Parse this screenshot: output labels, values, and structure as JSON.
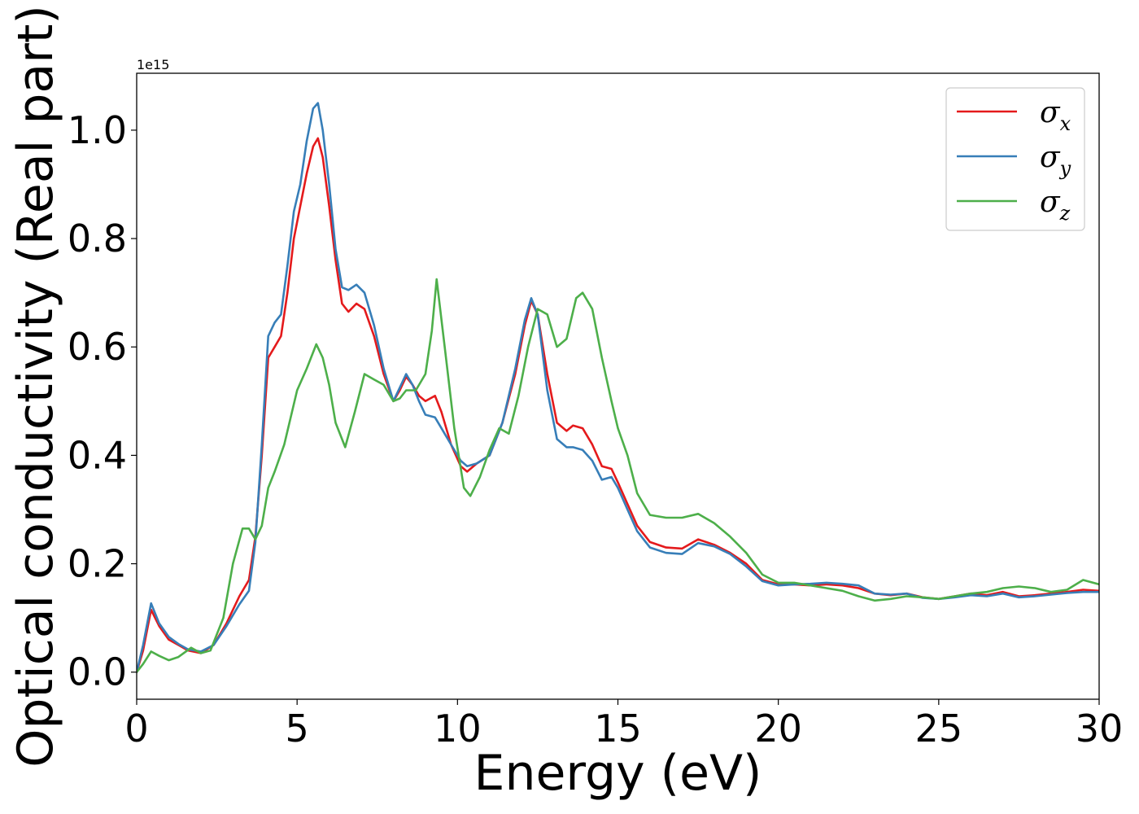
{
  "chart_data": {
    "type": "line",
    "title": "",
    "xlabel": "Energy (eV)",
    "ylabel": "Optical conductivity (Real part)",
    "y_offset_label": "1e15",
    "xlim": [
      0,
      30
    ],
    "ylim": [
      -0.05,
      1.105
    ],
    "xticks": [
      0,
      5,
      10,
      15,
      20,
      25,
      30
    ],
    "yticks": [
      0.0,
      0.2,
      0.4,
      0.6,
      0.8,
      1.0
    ],
    "ytick_labels": [
      "0.0",
      "0.2",
      "0.4",
      "0.6",
      "0.8",
      "1.0"
    ],
    "grid": false,
    "legend_position": "top-right",
    "series": [
      {
        "name": "σx",
        "base": "σ",
        "sub": "x",
        "color": "#e41a1c",
        "x": [
          0,
          0.2,
          0.45,
          0.7,
          1.0,
          1.3,
          1.6,
          2.0,
          2.4,
          2.8,
          3.2,
          3.5,
          3.7,
          3.9,
          4.1,
          4.3,
          4.5,
          4.7,
          4.9,
          5.1,
          5.3,
          5.5,
          5.65,
          5.8,
          6.0,
          6.2,
          6.4,
          6.6,
          6.85,
          7.1,
          7.4,
          7.7,
          8.0,
          8.2,
          8.4,
          8.6,
          8.8,
          9.0,
          9.3,
          9.5,
          9.8,
          10.1,
          10.3,
          10.6,
          11.0,
          11.4,
          11.8,
          12.1,
          12.3,
          12.5,
          12.8,
          13.1,
          13.4,
          13.6,
          13.9,
          14.2,
          14.5,
          14.8,
          15.0,
          15.3,
          15.6,
          16.0,
          16.5,
          17.0,
          17.5,
          18.0,
          18.5,
          19.0,
          19.5,
          20.0,
          20.5,
          21.0,
          21.5,
          22.0,
          22.5,
          23.0,
          23.5,
          24.0,
          24.5,
          25.0,
          25.5,
          26.0,
          26.5,
          27.0,
          27.5,
          28.0,
          28.5,
          29.0,
          29.5,
          30.0
        ],
        "y": [
          0.0,
          0.04,
          0.115,
          0.085,
          0.06,
          0.05,
          0.04,
          0.035,
          0.05,
          0.09,
          0.14,
          0.17,
          0.25,
          0.4,
          0.58,
          0.6,
          0.62,
          0.7,
          0.8,
          0.86,
          0.92,
          0.97,
          0.985,
          0.95,
          0.86,
          0.76,
          0.68,
          0.665,
          0.68,
          0.67,
          0.62,
          0.55,
          0.5,
          0.52,
          0.545,
          0.53,
          0.51,
          0.5,
          0.51,
          0.48,
          0.42,
          0.38,
          0.37,
          0.385,
          0.4,
          0.46,
          0.55,
          0.64,
          0.685,
          0.66,
          0.55,
          0.46,
          0.445,
          0.455,
          0.45,
          0.42,
          0.38,
          0.375,
          0.35,
          0.31,
          0.27,
          0.24,
          0.23,
          0.228,
          0.245,
          0.235,
          0.22,
          0.2,
          0.17,
          0.162,
          0.162,
          0.16,
          0.162,
          0.16,
          0.155,
          0.145,
          0.142,
          0.145,
          0.138,
          0.135,
          0.14,
          0.145,
          0.142,
          0.148,
          0.14,
          0.142,
          0.145,
          0.148,
          0.152,
          0.15
        ]
      },
      {
        "name": "σy",
        "base": "σ",
        "sub": "y",
        "color": "#377eb8",
        "x": [
          0,
          0.2,
          0.45,
          0.7,
          1.0,
          1.3,
          1.6,
          2.0,
          2.4,
          2.8,
          3.2,
          3.5,
          3.7,
          3.9,
          4.1,
          4.3,
          4.5,
          4.7,
          4.9,
          5.1,
          5.3,
          5.5,
          5.65,
          5.8,
          6.0,
          6.2,
          6.4,
          6.6,
          6.85,
          7.1,
          7.4,
          7.7,
          8.0,
          8.2,
          8.4,
          8.6,
          8.8,
          9.0,
          9.3,
          9.5,
          9.8,
          10.1,
          10.3,
          10.6,
          11.0,
          11.4,
          11.8,
          12.1,
          12.3,
          12.5,
          12.8,
          13.1,
          13.4,
          13.6,
          13.9,
          14.2,
          14.5,
          14.8,
          15.0,
          15.3,
          15.6,
          16.0,
          16.5,
          17.0,
          17.5,
          18.0,
          18.5,
          19.0,
          19.5,
          20.0,
          20.5,
          21.0,
          21.5,
          22.0,
          22.5,
          23.0,
          23.5,
          24.0,
          24.5,
          25.0,
          25.5,
          26.0,
          26.5,
          27.0,
          27.5,
          28.0,
          28.5,
          29.0,
          29.5,
          30.0
        ],
        "y": [
          0.0,
          0.05,
          0.127,
          0.09,
          0.065,
          0.052,
          0.042,
          0.038,
          0.05,
          0.085,
          0.125,
          0.15,
          0.24,
          0.42,
          0.62,
          0.645,
          0.66,
          0.75,
          0.85,
          0.9,
          0.98,
          1.04,
          1.05,
          1.0,
          0.9,
          0.78,
          0.71,
          0.705,
          0.715,
          0.7,
          0.64,
          0.56,
          0.5,
          0.525,
          0.55,
          0.53,
          0.5,
          0.475,
          0.47,
          0.45,
          0.42,
          0.39,
          0.38,
          0.385,
          0.4,
          0.46,
          0.56,
          0.65,
          0.69,
          0.66,
          0.52,
          0.43,
          0.415,
          0.415,
          0.41,
          0.39,
          0.355,
          0.36,
          0.34,
          0.3,
          0.26,
          0.23,
          0.22,
          0.218,
          0.238,
          0.232,
          0.218,
          0.195,
          0.168,
          0.16,
          0.162,
          0.163,
          0.165,
          0.163,
          0.16,
          0.145,
          0.143,
          0.145,
          0.137,
          0.135,
          0.138,
          0.142,
          0.14,
          0.145,
          0.138,
          0.14,
          0.143,
          0.146,
          0.148,
          0.148
        ]
      },
      {
        "name": "σz",
        "base": "σ",
        "sub": "z",
        "color": "#4daf4a",
        "x": [
          0,
          0.2,
          0.45,
          0.7,
          1.0,
          1.3,
          1.7,
          2.0,
          2.3,
          2.7,
          3.0,
          3.3,
          3.5,
          3.7,
          3.9,
          4.1,
          4.3,
          4.6,
          5.0,
          5.3,
          5.6,
          5.8,
          6.0,
          6.2,
          6.5,
          6.8,
          7.1,
          7.4,
          7.7,
          8.0,
          8.2,
          8.4,
          8.7,
          9.0,
          9.2,
          9.35,
          9.6,
          9.9,
          10.2,
          10.4,
          10.7,
          11.0,
          11.3,
          11.6,
          11.9,
          12.2,
          12.5,
          12.8,
          13.1,
          13.4,
          13.7,
          13.9,
          14.2,
          14.5,
          14.8,
          15.0,
          15.3,
          15.6,
          16.0,
          16.5,
          17.0,
          17.5,
          18.0,
          18.5,
          19.0,
          19.5,
          20.0,
          20.5,
          21.0,
          21.5,
          22.0,
          22.5,
          23.0,
          23.5,
          24.0,
          24.5,
          25.0,
          25.5,
          26.0,
          26.5,
          27.0,
          27.5,
          28.0,
          28.5,
          29.0,
          29.5,
          30.0
        ],
        "y": [
          0.0,
          0.015,
          0.038,
          0.03,
          0.022,
          0.028,
          0.045,
          0.035,
          0.04,
          0.1,
          0.2,
          0.265,
          0.265,
          0.245,
          0.27,
          0.34,
          0.37,
          0.42,
          0.52,
          0.56,
          0.605,
          0.58,
          0.53,
          0.46,
          0.415,
          0.48,
          0.55,
          0.54,
          0.53,
          0.5,
          0.505,
          0.52,
          0.52,
          0.55,
          0.63,
          0.725,
          0.6,
          0.45,
          0.34,
          0.325,
          0.36,
          0.41,
          0.45,
          0.44,
          0.51,
          0.6,
          0.67,
          0.66,
          0.6,
          0.615,
          0.69,
          0.7,
          0.67,
          0.58,
          0.5,
          0.45,
          0.4,
          0.33,
          0.29,
          0.285,
          0.285,
          0.292,
          0.275,
          0.25,
          0.22,
          0.18,
          0.165,
          0.165,
          0.16,
          0.155,
          0.15,
          0.14,
          0.132,
          0.135,
          0.14,
          0.138,
          0.135,
          0.14,
          0.145,
          0.148,
          0.155,
          0.158,
          0.155,
          0.148,
          0.152,
          0.17,
          0.162
        ]
      }
    ]
  }
}
